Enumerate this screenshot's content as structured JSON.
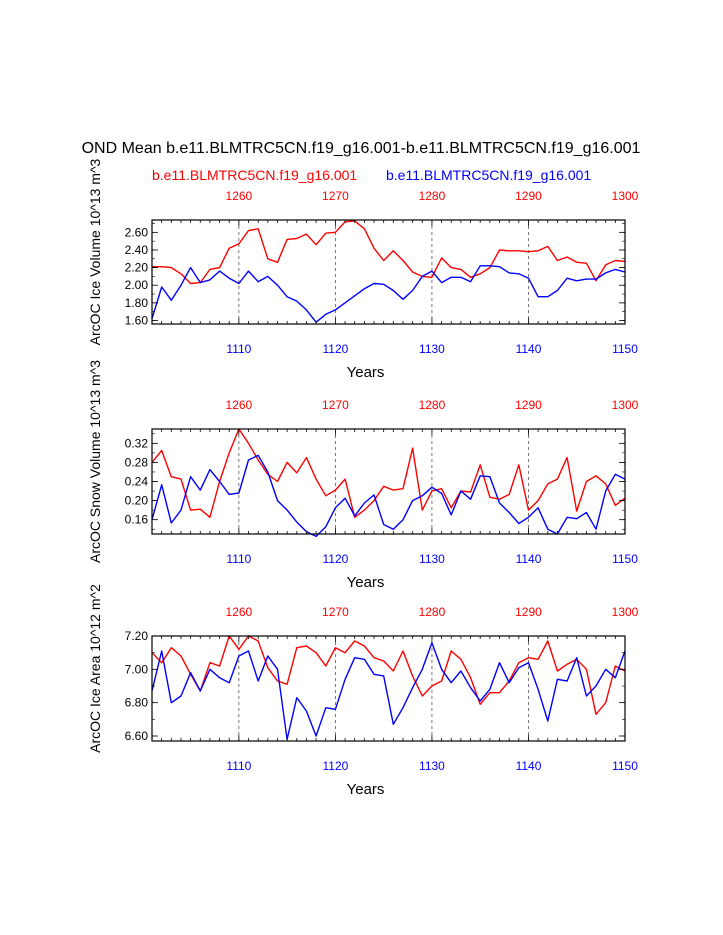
{
  "title": "OND Mean b.e11.BLMTRC5CN.f19_g16.001-b.e11.BLMTRC5CN.f19_g16.001",
  "legend": {
    "red_label": "b.e11.BLMTRC5CN.f19_g16.001",
    "blue_label": "b.e11.BLMTRC5CN.f19_g16.001"
  },
  "colors": {
    "red": "#ff0000",
    "blue": "#0000ff",
    "axis": "#000000"
  },
  "chart_data": [
    {
      "type": "line",
      "ylabel": "ArcOC Ice Volume 10^13 m^3",
      "xlabel": "Years",
      "x_bottom": {
        "range": [
          1101,
          1150
        ],
        "ticks": [
          "1110",
          "1120",
          "1130",
          "1140",
          "1150"
        ]
      },
      "x_top": {
        "range": [
          1251,
          1300
        ],
        "ticks": [
          "1260",
          "1270",
          "1280",
          "1290",
          "1300"
        ]
      },
      "ylim": [
        1.56,
        2.74
      ],
      "yticks": [
        "1.60",
        "1.80",
        "2.00",
        "2.20",
        "2.40",
        "2.60"
      ],
      "ytick_values": [
        1.6,
        1.8,
        2.0,
        2.2,
        2.4,
        2.6
      ],
      "series": [
        {
          "name": "b.e11.BLMTRC5CN.f19_g16.001",
          "color": "red",
          "values": [
            2.21,
            2.21,
            2.2,
            2.13,
            2.02,
            2.03,
            2.18,
            2.2,
            2.42,
            2.47,
            2.62,
            2.64,
            2.3,
            2.26,
            2.52,
            2.53,
            2.58,
            2.46,
            2.59,
            2.6,
            2.72,
            2.73,
            2.64,
            2.42,
            2.28,
            2.39,
            2.28,
            2.15,
            2.1,
            2.09,
            2.31,
            2.2,
            2.18,
            2.09,
            2.13,
            2.2,
            2.4,
            2.39,
            2.39,
            2.38,
            2.39,
            2.44,
            2.28,
            2.32,
            2.26,
            2.25,
            2.05,
            2.23,
            2.28,
            2.27
          ]
        },
        {
          "name": "b.e11.BLMTRC5CN.f19_g16.001",
          "color": "blue",
          "values": [
            1.62,
            1.98,
            1.83,
            2.0,
            2.2,
            2.03,
            2.06,
            2.16,
            2.08,
            2.02,
            2.16,
            2.04,
            2.1,
            2.0,
            1.87,
            1.82,
            1.72,
            1.58,
            1.67,
            1.72,
            1.8,
            1.88,
            1.96,
            2.02,
            2.01,
            1.94,
            1.84,
            1.94,
            2.1,
            2.16,
            2.03,
            2.09,
            2.09,
            2.04,
            2.22,
            2.22,
            2.21,
            2.14,
            2.13,
            2.08,
            1.87,
            1.87,
            1.94,
            2.08,
            2.05,
            2.07,
            2.07,
            2.14,
            2.18,
            2.15
          ]
        }
      ]
    },
    {
      "type": "line",
      "ylabel": "ArcOC Snow Volume 10^13 m^3",
      "xlabel": "Years",
      "x_bottom": {
        "range": [
          1101,
          1150
        ],
        "ticks": [
          "1110",
          "1120",
          "1130",
          "1140",
          "1150"
        ]
      },
      "x_top": {
        "range": [
          1251,
          1300
        ],
        "ticks": [
          "1260",
          "1270",
          "1280",
          "1290",
          "1300"
        ]
      },
      "ylim": [
        0.13,
        0.35
      ],
      "yticks": [
        "0.16",
        "0.20",
        "0.24",
        "0.28",
        "0.32"
      ],
      "ytick_values": [
        0.16,
        0.2,
        0.24,
        0.28,
        0.32
      ],
      "series": [
        {
          "name": "b.e11.BLMTRC5CN.f19_g16.001",
          "color": "red",
          "values": [
            0.28,
            0.305,
            0.25,
            0.245,
            0.18,
            0.182,
            0.165,
            0.24,
            0.3,
            0.35,
            0.32,
            0.285,
            0.255,
            0.24,
            0.28,
            0.258,
            0.29,
            0.245,
            0.21,
            0.222,
            0.245,
            0.165,
            0.18,
            0.2,
            0.23,
            0.222,
            0.225,
            0.31,
            0.18,
            0.22,
            0.225,
            0.185,
            0.22,
            0.218,
            0.275,
            0.207,
            0.203,
            0.213,
            0.275,
            0.18,
            0.2,
            0.235,
            0.245,
            0.29,
            0.178,
            0.24,
            0.252,
            0.235,
            0.19,
            0.205
          ]
        },
        {
          "name": "b.e11.BLMTRC5CN.f19_g16.001",
          "color": "blue",
          "values": [
            0.16,
            0.233,
            0.153,
            0.18,
            0.25,
            0.222,
            0.265,
            0.24,
            0.213,
            0.216,
            0.285,
            0.295,
            0.26,
            0.2,
            0.18,
            0.155,
            0.135,
            0.125,
            0.145,
            0.185,
            0.205,
            0.168,
            0.195,
            0.212,
            0.15,
            0.14,
            0.16,
            0.2,
            0.21,
            0.228,
            0.215,
            0.17,
            0.22,
            0.203,
            0.252,
            0.25,
            0.195,
            0.175,
            0.152,
            0.165,
            0.185,
            0.14,
            0.13,
            0.165,
            0.162,
            0.175,
            0.14,
            0.22,
            0.255,
            0.245
          ]
        }
      ]
    },
    {
      "type": "line",
      "ylabel": "ArcOC Ice Area 10^12 m^2",
      "xlabel": "Years",
      "x_bottom": {
        "range": [
          1101,
          1150
        ],
        "ticks": [
          "1110",
          "1120",
          "1130",
          "1140",
          "1150"
        ]
      },
      "x_top": {
        "range": [
          1251,
          1300
        ],
        "ticks": [
          "1260",
          "1270",
          "1280",
          "1290",
          "1300"
        ]
      },
      "ylim": [
        6.57,
        7.2
      ],
      "yticks": [
        "6.60",
        "6.80",
        "7.00",
        "7.20"
      ],
      "ytick_values": [
        6.6,
        6.8,
        7.0,
        7.2
      ],
      "series": [
        {
          "name": "b.e11.BLMTRC5CN.f19_g16.001",
          "color": "red",
          "values": [
            7.1,
            7.04,
            7.13,
            7.08,
            6.97,
            6.87,
            7.04,
            7.02,
            7.2,
            7.12,
            7.2,
            7.17,
            7.01,
            6.93,
            6.91,
            7.13,
            7.14,
            7.1,
            7.02,
            7.13,
            7.1,
            7.17,
            7.14,
            7.07,
            7.05,
            6.99,
            7.11,
            6.96,
            6.84,
            6.9,
            6.93,
            7.11,
            7.06,
            6.95,
            6.79,
            6.86,
            6.86,
            6.93,
            7.04,
            7.07,
            7.06,
            7.17,
            6.99,
            7.03,
            7.06,
            7.0,
            6.73,
            6.8,
            7.02,
            6.99
          ]
        },
        {
          "name": "b.e11.BLMTRC5CN.f19_g16.001",
          "color": "blue",
          "values": [
            6.87,
            7.11,
            6.8,
            6.84,
            6.98,
            6.87,
            7.0,
            6.95,
            6.92,
            7.08,
            7.11,
            6.93,
            7.08,
            7.0,
            6.58,
            6.83,
            6.75,
            6.6,
            6.77,
            6.76,
            6.94,
            7.07,
            7.06,
            6.97,
            6.96,
            6.67,
            6.77,
            6.89,
            7.0,
            7.16,
            7.0,
            6.92,
            6.99,
            6.89,
            6.81,
            6.88,
            7.04,
            6.92,
            7.01,
            7.04,
            6.88,
            6.69,
            6.94,
            6.93,
            7.07,
            6.84,
            6.9,
            7.0,
            6.95,
            7.11
          ]
        }
      ]
    }
  ]
}
